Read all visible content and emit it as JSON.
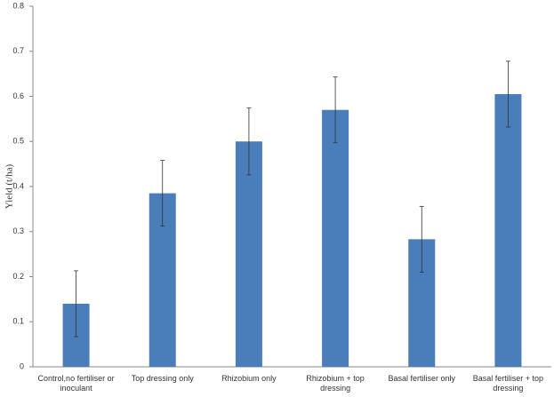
{
  "chart_data": {
    "type": "bar",
    "y_label": "Yield (t/ha)",
    "categories": [
      "Control,no fertiliser or inoculant",
      "Top dressing only",
      "Rhizobium only",
      "Rhizobium + top dressing",
      "Basal fertiliser only",
      "Basal fertiliser + top dressing"
    ],
    "values": [
      0.14,
      0.385,
      0.5,
      0.57,
      0.283,
      0.605
    ],
    "errors": [
      0.073,
      0.073,
      0.074,
      0.073,
      0.073,
      0.073
    ],
    "color": "#4a7ebb",
    "ylim": [
      0,
      0.8
    ],
    "yticks": [
      0,
      0.1,
      0.2,
      0.3,
      0.4,
      0.5,
      0.6,
      0.7,
      0.8
    ],
    "grid": false
  }
}
